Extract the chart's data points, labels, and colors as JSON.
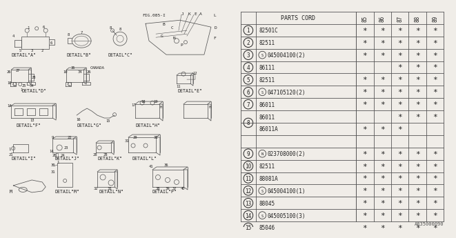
{
  "bg_color": "#f0ede8",
  "diagram_note": "A835000090",
  "table": {
    "rows": [
      {
        "num": 1,
        "part": "82501C",
        "prefix": "",
        "marks": [
          true,
          true,
          true,
          true,
          true
        ]
      },
      {
        "num": 2,
        "part": "82511",
        "prefix": "",
        "marks": [
          true,
          true,
          true,
          true,
          true
        ]
      },
      {
        "num": 3,
        "part": "045004100(2)",
        "prefix": "S",
        "marks": [
          true,
          true,
          true,
          true,
          true
        ]
      },
      {
        "num": 4,
        "part": "86111",
        "prefix": "",
        "marks": [
          false,
          false,
          true,
          true,
          true
        ]
      },
      {
        "num": 5,
        "part": "82511",
        "prefix": "",
        "marks": [
          true,
          true,
          true,
          true,
          true
        ]
      },
      {
        "num": 6,
        "part": "047105120(2)",
        "prefix": "S",
        "marks": [
          true,
          true,
          true,
          true,
          true
        ]
      },
      {
        "num": 7,
        "part": "86011",
        "prefix": "",
        "marks": [
          true,
          true,
          true,
          true,
          true
        ]
      },
      {
        "num": "8a",
        "part": "86011",
        "prefix": "",
        "marks": [
          false,
          false,
          true,
          true,
          true
        ]
      },
      {
        "num": "8b",
        "part": "86011A",
        "prefix": "",
        "marks": [
          true,
          true,
          true,
          false,
          false
        ]
      },
      {
        "num": 9,
        "part": "023708000(2)",
        "prefix": "N",
        "marks": [
          true,
          true,
          true,
          true,
          true
        ]
      },
      {
        "num": 10,
        "part": "82511",
        "prefix": "",
        "marks": [
          true,
          true,
          true,
          true,
          true
        ]
      },
      {
        "num": 11,
        "part": "88081A",
        "prefix": "",
        "marks": [
          true,
          true,
          true,
          true,
          true
        ]
      },
      {
        "num": 12,
        "part": "045004100(1)",
        "prefix": "S",
        "marks": [
          true,
          true,
          true,
          true,
          true
        ]
      },
      {
        "num": 13,
        "part": "88045",
        "prefix": "",
        "marks": [
          true,
          true,
          true,
          true,
          true
        ]
      },
      {
        "num": 14,
        "part": "045005100(3)",
        "prefix": "S",
        "marks": [
          true,
          true,
          true,
          true,
          true
        ]
      },
      {
        "num": 15,
        "part": "85046",
        "prefix": "",
        "marks": [
          true,
          true,
          true,
          true,
          true
        ]
      }
    ],
    "year_labels": [
      "85",
      "86",
      "87",
      "88",
      "89"
    ]
  }
}
